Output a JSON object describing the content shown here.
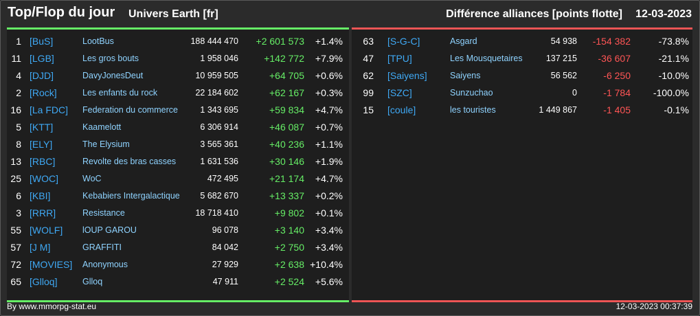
{
  "header": {
    "title": "Top/Flop du jour",
    "subtitle": "Univers Earth [fr]",
    "right_title": "Différence alliances [points flotte]",
    "date": "12-03-2023"
  },
  "colors": {
    "top_accent": "#66ee66",
    "flop_accent": "#ff5555",
    "tag_color": "#3fa9f5",
    "name_color": "#8fd3ff"
  },
  "top": [
    {
      "rank": "1",
      "tag": "[BuS]",
      "name": "LootBus",
      "points": "188 444 470",
      "diff": "+2 601 573",
      "pct": "+1.4%"
    },
    {
      "rank": "11",
      "tag": "[LGB]",
      "name": "Les gros bouts",
      "points": "1 958 046",
      "diff": "+142 772",
      "pct": "+7.9%"
    },
    {
      "rank": "4",
      "tag": "[DJD]",
      "name": "DavyJonesDeut",
      "points": "10 959 505",
      "diff": "+64 705",
      "pct": "+0.6%"
    },
    {
      "rank": "2",
      "tag": "[Rock]",
      "name": "Les enfants du rock",
      "points": "22 184 602",
      "diff": "+62 167",
      "pct": "+0.3%"
    },
    {
      "rank": "16",
      "tag": "[La FDC]",
      "name": "Federation du commerce",
      "points": "1 343 695",
      "diff": "+59 834",
      "pct": "+4.7%"
    },
    {
      "rank": "5",
      "tag": "[KTT]",
      "name": "Kaamelott",
      "points": "6 306 914",
      "diff": "+46 087",
      "pct": "+0.7%"
    },
    {
      "rank": "8",
      "tag": "[ELY]",
      "name": "The Elysium",
      "points": "3 565 361",
      "diff": "+40 236",
      "pct": "+1.1%"
    },
    {
      "rank": "13",
      "tag": "[RBC]",
      "name": "Revolte des bras casses",
      "points": "1 631 536",
      "diff": "+30 146",
      "pct": "+1.9%"
    },
    {
      "rank": "25",
      "tag": "[WOC]",
      "name": "WoC",
      "points": "472 495",
      "diff": "+21 174",
      "pct": "+4.7%"
    },
    {
      "rank": "6",
      "tag": "[KBI]",
      "name": "Kebabiers Intergalactique",
      "points": "5 682 670",
      "diff": "+13 337",
      "pct": "+0.2%"
    },
    {
      "rank": "3",
      "tag": "[RRR]",
      "name": "Resistance",
      "points": "18 718 410",
      "diff": "+9 802",
      "pct": "+0.1%"
    },
    {
      "rank": "55",
      "tag": "[WOLF]",
      "name": "lOUP GAROU",
      "points": "96 078",
      "diff": "+3 140",
      "pct": "+3.4%"
    },
    {
      "rank": "57",
      "tag": "[J M]",
      "name": "GRAFFITI",
      "points": "84 042",
      "diff": "+2 750",
      "pct": "+3.4%"
    },
    {
      "rank": "72",
      "tag": "[MOVIES]",
      "name": "Anonymous",
      "points": "27 929",
      "diff": "+2 638",
      "pct": "+10.4%"
    },
    {
      "rank": "65",
      "tag": "[Glloq]",
      "name": "Glloq",
      "points": "47 911",
      "diff": "+2 524",
      "pct": "+5.6%"
    }
  ],
  "flop": [
    {
      "rank": "63",
      "tag": "[S-G-C]",
      "name": "Asgard",
      "points": "54 938",
      "diff": "-154 382",
      "pct": "-73.8%"
    },
    {
      "rank": "47",
      "tag": "[TPU]",
      "name": "Les Mousquetaires",
      "points": "137 215",
      "diff": "-36 607",
      "pct": "-21.1%"
    },
    {
      "rank": "62",
      "tag": "[Saiyens]",
      "name": "Saiyens",
      "points": "56 562",
      "diff": "-6 250",
      "pct": "-10.0%"
    },
    {
      "rank": "99",
      "tag": "[SZC]",
      "name": "Sunzuchao",
      "points": "0",
      "diff": "-1 784",
      "pct": "-100.0%"
    },
    {
      "rank": "15",
      "tag": "[coule]",
      "name": "les touristes",
      "points": "1 449 867",
      "diff": "-1 405",
      "pct": "-0.1%"
    }
  ],
  "footer": {
    "credit": "By www.mmorpg-stat.eu",
    "timestamp": "12-03-2023 00:37:39"
  }
}
